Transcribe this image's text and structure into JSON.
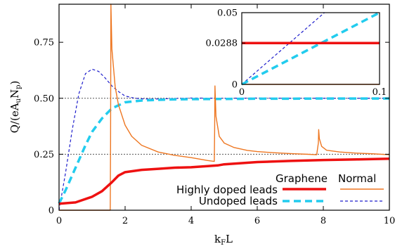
{
  "chart_data": [
    {
      "type": "line",
      "role": "main",
      "xlabel": "k_F L",
      "ylabel": "Q/(eA_u N_p)",
      "xlim": [
        0,
        10
      ],
      "ylim": [
        0,
        0.92
      ],
      "x_ticks": [
        "0",
        "2",
        "4",
        "6",
        "8",
        "10"
      ],
      "y_ticks": [
        "0",
        "0.25",
        "0.50",
        "0.75"
      ],
      "reference_lines": [
        0.25,
        0.5
      ],
      "legend": {
        "placement": "bottom-right",
        "column_headers": [
          "Graphene",
          "Normal"
        ],
        "row_labels": [
          "Highly doped leads",
          "Undoped leads"
        ]
      },
      "series": [
        {
          "name": "Graphene, highly doped leads",
          "color": "#ee1111",
          "style": "solid-thick",
          "x": [
            0,
            0.5,
            1.0,
            1.3,
            1.6,
            1.8,
            2.0,
            2.5,
            3.0,
            3.5,
            4.0,
            4.5,
            4.8,
            5.0,
            5.5,
            6.0,
            7.0,
            8.0,
            9.0,
            10.0
          ],
          "y": [
            0.029,
            0.035,
            0.06,
            0.085,
            0.125,
            0.155,
            0.17,
            0.18,
            0.185,
            0.19,
            0.192,
            0.197,
            0.2,
            0.205,
            0.21,
            0.215,
            0.22,
            0.224,
            0.227,
            0.23
          ]
        },
        {
          "name": "Normal, highly doped leads",
          "color": "#ee7722",
          "style": "solid-thin",
          "x": [
            0,
            1.55,
            1.56,
            1.57,
            1.6,
            1.7,
            1.8,
            2.0,
            2.2,
            2.5,
            3.0,
            3.5,
            4.0,
            4.5,
            4.7,
            4.71,
            4.72,
            4.75,
            4.85,
            5.0,
            5.3,
            5.7,
            6.0,
            6.5,
            7.0,
            7.5,
            7.8,
            7.85,
            7.86,
            7.88,
            7.95,
            8.1,
            8.5,
            9.0,
            9.5,
            10.0
          ],
          "y": [
            0,
            0,
            0.3,
            0.92,
            0.72,
            0.55,
            0.47,
            0.38,
            0.33,
            0.29,
            0.26,
            0.245,
            0.235,
            0.222,
            0.218,
            0.35,
            0.555,
            0.42,
            0.33,
            0.3,
            0.28,
            0.267,
            0.262,
            0.257,
            0.253,
            0.25,
            0.248,
            0.3,
            0.36,
            0.32,
            0.285,
            0.268,
            0.26,
            0.255,
            0.252,
            0.248
          ]
        },
        {
          "name": "Graphene, undoped leads",
          "color": "#22ccee",
          "style": "dashed-thick",
          "x": [
            0,
            0.2,
            0.5,
            0.8,
            1.0,
            1.3,
            1.6,
            2.0,
            2.5,
            3.0,
            3.5,
            4.0,
            5.0,
            6.0,
            7.0,
            8.0,
            9.0,
            10.0
          ],
          "y": [
            0.03,
            0.09,
            0.19,
            0.29,
            0.35,
            0.41,
            0.455,
            0.482,
            0.49,
            0.493,
            0.495,
            0.496,
            0.497,
            0.498,
            0.498,
            0.499,
            0.499,
            0.499
          ]
        },
        {
          "name": "Normal, undoped leads",
          "color": "#1f1fcc",
          "style": "dashed-thin",
          "x": [
            0,
            0.2,
            0.4,
            0.6,
            0.8,
            1.0,
            1.2,
            1.4,
            1.6,
            1.8,
            2.0,
            2.3,
            2.6,
            3.0,
            3.5,
            4.0,
            5.0,
            6.0,
            7.0,
            8.0,
            9.0,
            10.0
          ],
          "y": [
            0,
            0.17,
            0.36,
            0.52,
            0.61,
            0.63,
            0.62,
            0.59,
            0.555,
            0.53,
            0.51,
            0.5,
            0.497,
            0.497,
            0.499,
            0.501,
            0.5,
            0.501,
            0.5,
            0.5,
            0.5,
            0.5
          ]
        }
      ]
    },
    {
      "type": "line",
      "role": "inset",
      "placement": "top-right",
      "xlim": [
        0,
        0.1
      ],
      "ylim": [
        0,
        0.05
      ],
      "x_ticks": [
        "0",
        "0.1"
      ],
      "y_ticks": [
        "0",
        "0.0288",
        "0.05"
      ],
      "series": [
        {
          "name": "Graphene, highly doped leads",
          "color": "#ee1111",
          "style": "solid-thick",
          "x": [
            0,
            0.1
          ],
          "y": [
            0.0288,
            0.0288
          ]
        },
        {
          "name": "Normal, highly doped leads",
          "color": "#ee7722",
          "style": "solid-thin",
          "x": [
            0,
            0.1
          ],
          "y": [
            0,
            0
          ]
        },
        {
          "name": "Graphene, undoped leads",
          "color": "#22ccee",
          "style": "dashed-thick",
          "x": [
            0,
            0.1
          ],
          "y": [
            0,
            0.05
          ]
        },
        {
          "name": "Normal, undoped leads",
          "color": "#1f1fcc",
          "style": "dashed-thin",
          "x": [
            0,
            0.06
          ],
          "y": [
            0,
            0.05
          ]
        }
      ]
    }
  ]
}
